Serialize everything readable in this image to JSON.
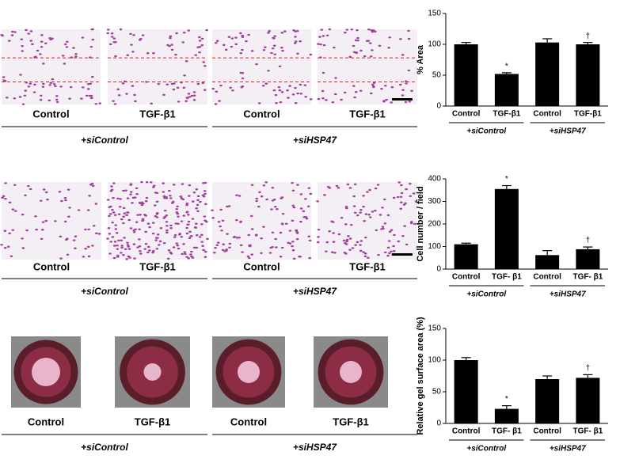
{
  "panels": [
    {
      "labels": [
        "Control",
        "TGF-β1",
        "Control",
        "TGF-β1"
      ],
      "groups": [
        "+siControl",
        "+siHSP47"
      ]
    },
    {
      "labels": [
        "Control",
        "TGF-β1",
        "Control",
        "TGF-β1"
      ],
      "groups": [
        "+siControl",
        "+siHSP47"
      ]
    },
    {
      "labels": [
        "Control",
        "TGF-β1",
        "Control",
        "TGF-β1"
      ],
      "groups": [
        "+siControl",
        "+siHSP47"
      ]
    }
  ],
  "chart_data": [
    {
      "type": "bar",
      "ylabel": "% Area",
      "categories": [
        "Control",
        "TGF-β1",
        "Control",
        "TGF-β1"
      ],
      "groups": [
        "+siControl",
        "+siHSP47"
      ],
      "values": [
        100,
        52,
        103,
        100
      ],
      "errors": [
        3,
        2,
        6,
        3
      ],
      "color": "#000000",
      "annotations": [
        {
          "index": 1,
          "text": "*"
        },
        {
          "index": 3,
          "text": "†"
        }
      ],
      "ylim": [
        0,
        150
      ],
      "yticks": [
        0,
        50,
        100,
        150
      ]
    },
    {
      "type": "bar",
      "ylabel": "Cell number / field",
      "categories": [
        "Control",
        "TGF- β1",
        "Control",
        "TGF- β1"
      ],
      "groups": [
        "+siControl",
        "+siHSP47"
      ],
      "values": [
        110,
        355,
        62,
        88
      ],
      "errors": [
        5,
        15,
        20,
        10
      ],
      "color": "#000000",
      "annotations": [
        {
          "index": 1,
          "text": "*"
        },
        {
          "index": 3,
          "text": "†"
        }
      ],
      "ylim": [
        0,
        400
      ],
      "yticks": [
        0,
        100,
        200,
        300,
        400
      ]
    },
    {
      "type": "bar",
      "ylabel": "Relative gel surface area (%)",
      "categories": [
        "Control",
        "TGF- β1",
        "Control",
        "TGF- β1"
      ],
      "groups": [
        "+siControl",
        "+siHSP47"
      ],
      "values": [
        100,
        23,
        70,
        72
      ],
      "errors": [
        4,
        5,
        5,
        5
      ],
      "color": "#000000",
      "annotations": [
        {
          "index": 1,
          "text": "*"
        },
        {
          "index": 3,
          "text": "†"
        }
      ],
      "ylim": [
        0,
        150
      ],
      "yticks": [
        0,
        50,
        100,
        150
      ]
    }
  ]
}
